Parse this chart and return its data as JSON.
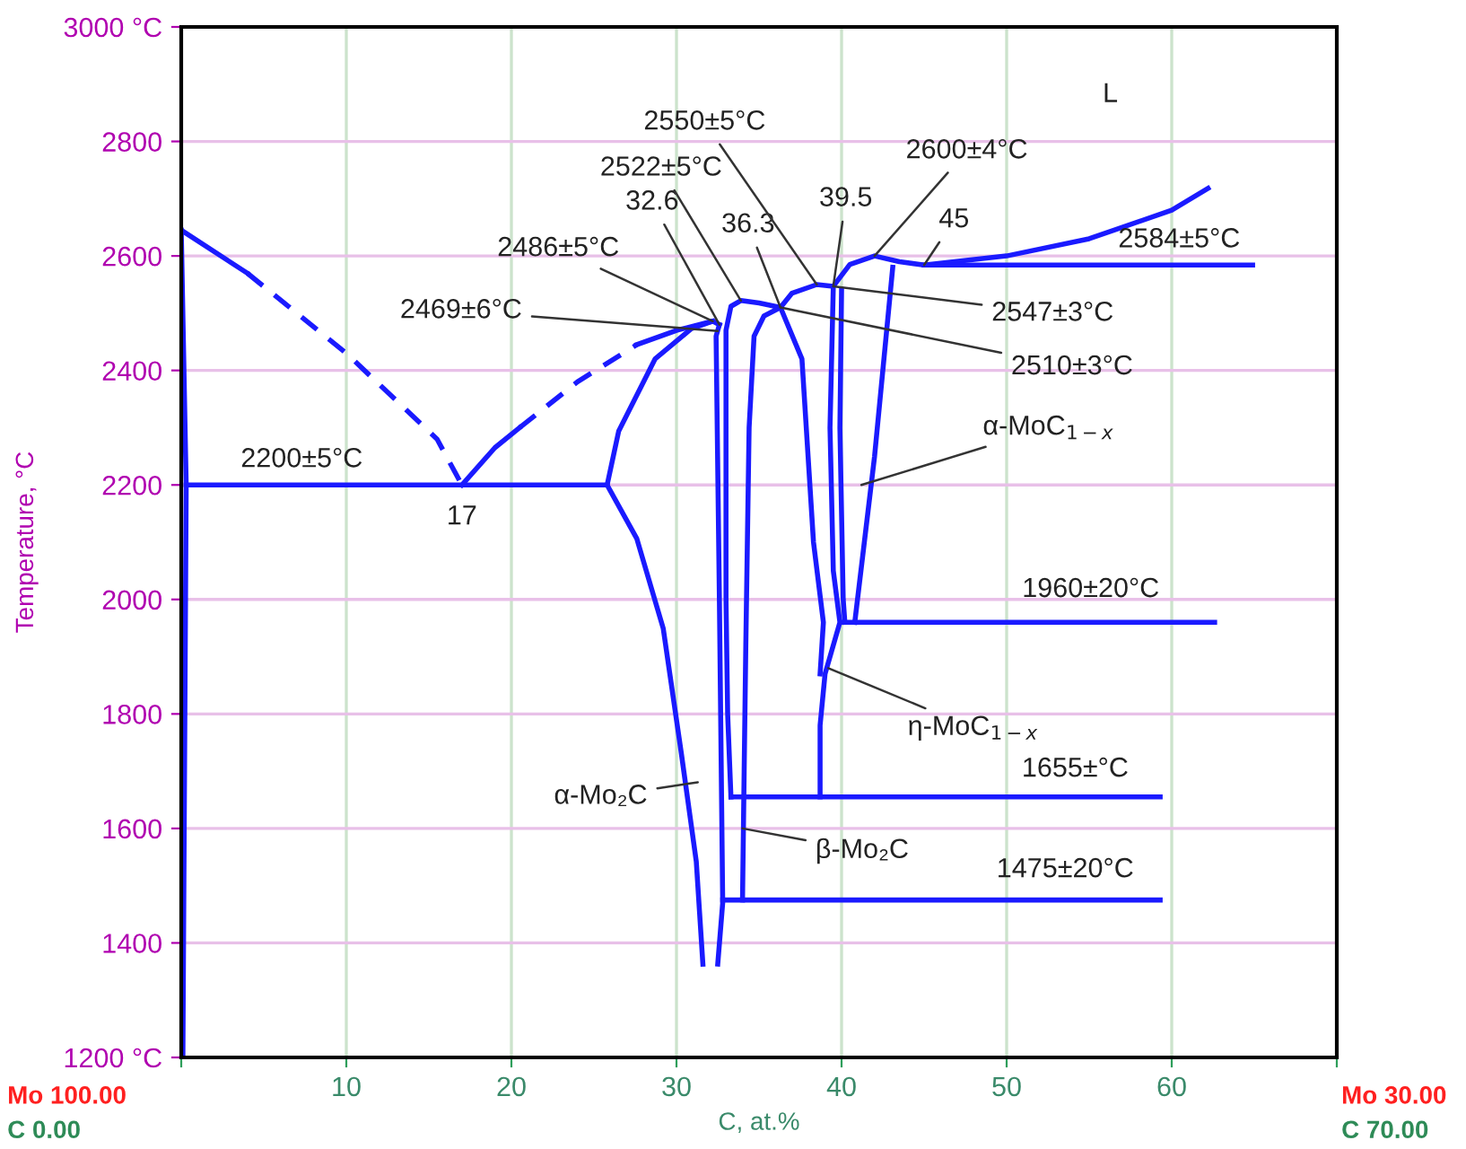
{
  "chart_data": {
    "type": "line",
    "xlabel": "C, at.%",
    "ylabel": "Temperature, °C",
    "xlim": [
      0,
      70
    ],
    "ylim": [
      1200,
      3000
    ],
    "xticks": [
      {
        "value": 0,
        "label": null
      },
      10,
      20,
      30,
      40,
      50,
      60,
      {
        "value": 70,
        "label": null
      }
    ],
    "yticks": [
      {
        "value": 1200,
        "label": "1200 °C"
      },
      1400,
      1600,
      1800,
      2000,
      2200,
      2400,
      2600,
      2800,
      {
        "value": 3000,
        "label": "3000 °C"
      }
    ],
    "grid": true,
    "marker": "none",
    "line_style": "solid",
    "series": [
      {
        "color": "#1a1aff",
        "x": [
          0,
          0.3,
          0.2,
          0.1
        ],
        "values": [
          2645,
          2200,
          1700,
          1200
        ]
      },
      {
        "color": "#1a1aff",
        "x": [
          0,
          4.0
        ],
        "values": [
          2645,
          2570
        ]
      },
      {
        "color": "#1a1aff",
        "line_style": "dashed",
        "x": [
          4.0,
          10,
          15.5,
          17
        ],
        "values": [
          2570,
          2430,
          2280,
          2200
        ]
      },
      {
        "color": "#1a1aff",
        "x": [
          17,
          19,
          20.5
        ],
        "values": [
          2200,
          2265,
          2300
        ]
      },
      {
        "color": "#1a1aff",
        "line_style": "dashed",
        "x": [
          20.5,
          24,
          27.6
        ],
        "values": [
          2300,
          2380,
          2445
        ]
      },
      {
        "color": "#1a1aff",
        "x": [
          27.6,
          30,
          32.2,
          32.6
        ],
        "values": [
          2445,
          2470,
          2486,
          2480
        ]
      },
      {
        "color": "#1a1aff",
        "x": [
          0.3,
          25.8
        ],
        "values": [
          2200,
          2200
        ]
      },
      {
        "color": "#1a1aff",
        "x": [
          25.8,
          26.5,
          28.7,
          30.9,
          32.2
        ],
        "values": [
          2200,
          2294,
          2420,
          2473,
          2486
        ]
      },
      {
        "color": "#1a1aff",
        "x": [
          25.8,
          27.6,
          29.2,
          30.3,
          31.2,
          31.6
        ],
        "values": [
          2200,
          2106,
          1949,
          1730,
          1542,
          1363
        ]
      },
      {
        "color": "#1a1aff",
        "x": [
          32.5,
          32.8,
          32.6,
          32.4,
          32.6
        ],
        "values": [
          1363,
          1470,
          2000,
          2460,
          2480
        ]
      },
      {
        "color": "#1a1aff",
        "x": [
          33.3,
          33.1,
          33.0,
          33.0,
          33.3,
          33.9,
          35.0,
          36.3,
          35.3,
          34.7,
          34.4,
          34.2,
          34.1,
          34.0
        ],
        "values": [
          1655,
          1800,
          2000,
          2470,
          2512,
          2522,
          2518,
          2510,
          2495,
          2460,
          2300,
          1920,
          1700,
          1475
        ]
      },
      {
        "color": "#1a1aff",
        "x": [
          32.8,
          59.3
        ],
        "values": [
          1475,
          1475
        ]
      },
      {
        "color": "#1a1aff",
        "x": [
          36.3,
          37.0,
          38.5,
          39.5,
          40.5,
          42.0,
          43.5,
          45.0,
          50.0,
          55.0,
          60.0,
          62.2
        ],
        "values": [
          2510,
          2535,
          2550,
          2547,
          2585,
          2600,
          2590,
          2584,
          2600,
          2630,
          2680,
          2718
        ]
      },
      {
        "color": "#1a1aff",
        "x": [
          36.3,
          37.6,
          38.3,
          38.9,
          38.7
        ],
        "values": [
          2510,
          2420,
          2100,
          1960,
          1870
        ]
      },
      {
        "color": "#1a1aff",
        "x": [
          39.5,
          39.3,
          39.5,
          39.9,
          39.0,
          38.7,
          38.7
        ],
        "values": [
          2547,
          2300,
          2050,
          1960,
          1870,
          1780,
          1655
        ]
      },
      {
        "color": "#1a1aff",
        "x": [
          40.0,
          39.9,
          40.1,
          40.2
        ],
        "values": [
          2540,
          2300,
          2000,
          1960
        ]
      },
      {
        "color": "#1a1aff",
        "x": [
          43.1,
          42.0,
          40.8
        ],
        "values": [
          2580,
          2250,
          1960
        ]
      },
      {
        "color": "#1a1aff",
        "x": [
          40.0,
          62.6
        ],
        "values": [
          1960,
          1960
        ]
      },
      {
        "color": "#1a1aff",
        "x": [
          33.3,
          59.3
        ],
        "values": [
          1655,
          1655
        ]
      },
      {
        "color": "#1a1aff",
        "x": [
          45.0,
          64.9
        ],
        "values": [
          2584,
          2584
        ]
      }
    ],
    "annotations": [
      {
        "text": "2200±5°C",
        "x": 7.3,
        "y": 2200
      },
      {
        "text": "17",
        "x": 17,
        "y": 2200
      },
      {
        "text": "2469±6°C",
        "x": 32.5,
        "y": 2469
      },
      {
        "text": "2486±5°C",
        "x": 32.2,
        "y": 2486
      },
      {
        "text": "32.6",
        "x": 32.6,
        "y": 2480
      },
      {
        "text": "2522±5°C",
        "x": 33.9,
        "y": 2522
      },
      {
        "text": "36.3",
        "x": 36.3,
        "y": 2510
      },
      {
        "text": "2550±5°C",
        "x": 38.5,
        "y": 2550
      },
      {
        "text": "39.5",
        "x": 39.5,
        "y": 2547
      },
      {
        "text": "2600±4°C",
        "x": 42,
        "y": 2600
      },
      {
        "text": "45",
        "x": 45,
        "y": 2584
      },
      {
        "text": "2584±5°C",
        "x": 60,
        "y": 2584
      },
      {
        "text": "2547±3°C",
        "x": 39.5,
        "y": 2547
      },
      {
        "text": "2510±3°C",
        "x": 36.3,
        "y": 2510
      },
      {
        "text": "α-MoC$_{1−x}$",
        "x": 41.2,
        "y": 2200
      },
      {
        "text": "1960±20°C",
        "x": 56,
        "y": 1960
      },
      {
        "text": "η-MoC$_{1−x}$",
        "x": 39.2,
        "y": 1880
      },
      {
        "text": "1655±°C",
        "x": 54,
        "y": 1655
      },
      {
        "text": "β-Mo₂C",
        "x": 34,
        "y": 1600
      },
      {
        "text": "1475±20°C",
        "x": 54,
        "y": 1475
      },
      "α-Mo₂C",
      "L",
      "Mo 100.00",
      "C 0.00",
      "Mo 30.00",
      "C 70.00"
    ]
  }
}
